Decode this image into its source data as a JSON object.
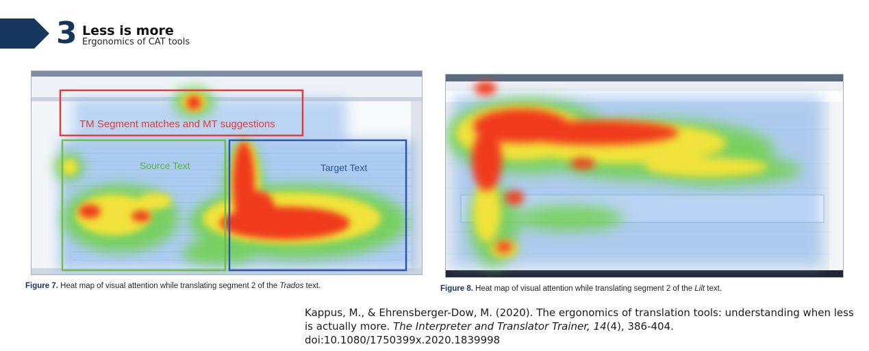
{
  "section": {
    "number": "3",
    "title": "Less is more",
    "subtitle": "Ergonomics of CAT tools"
  },
  "figure7": {
    "labels": {
      "tm": "TM Segment matches and MT suggestions",
      "source": "Source Text",
      "target": "Target Text"
    },
    "caption": {
      "prefix": "Figure 7.",
      "text": " Heat map of visual attention while translating segment 2 of the ",
      "emph": "Trados",
      "suffix": " text."
    }
  },
  "figure8": {
    "caption": {
      "prefix": "Figure 8.",
      "text": " Heat map of visual attention while translating segment 2 of the ",
      "emph": "Lilt",
      "suffix": " text."
    }
  },
  "citation": {
    "authors": "Kappus, M., & Ehrensberger-Dow, M. (2020). The ergonomics of translation tools: understanding when less is actually more. ",
    "journal": "The Interpreter and Translator Trainer, 14",
    "details": "(4), 386-404. doi:10.1080/1750399x.2020.1839998"
  },
  "colors": {
    "accent": "#17365d",
    "tm_box": "#e03a3a",
    "source_box": "#6cbf4a",
    "target_box": "#2f55a4"
  }
}
